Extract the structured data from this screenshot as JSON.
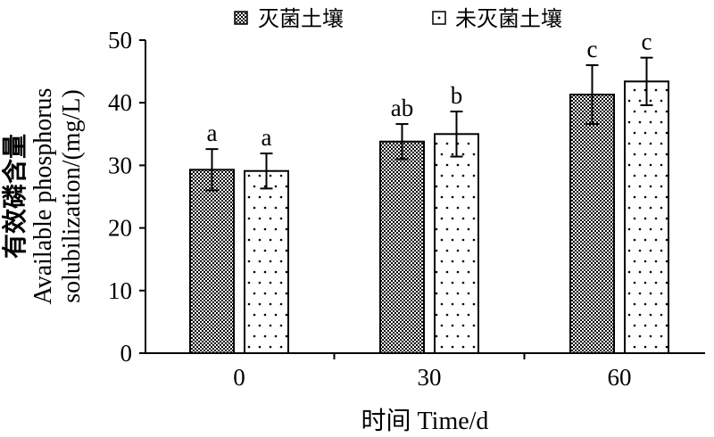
{
  "chart_data": {
    "type": "bar",
    "categories": [
      "0",
      "30",
      "60"
    ],
    "series": [
      {
        "name": "灭菌土壤",
        "values": [
          29.3,
          33.8,
          41.3
        ],
        "errors": [
          3.3,
          2.8,
          4.7
        ],
        "letters": [
          "a",
          "ab",
          "c"
        ],
        "pattern": "checkered"
      },
      {
        "name": "未灭菌土壤",
        "values": [
          29.1,
          35.0,
          43.4
        ],
        "errors": [
          2.8,
          3.6,
          3.8
        ],
        "letters": [
          "a",
          "b",
          "c"
        ],
        "pattern": "dotted"
      }
    ],
    "xlabel": "时间 Time/d",
    "ylabel": [
      "有效磷含量",
      "Available phosphorus",
      "solubilization/(mg/L)"
    ],
    "ylim": [
      0,
      50
    ],
    "yticks": [
      0,
      10,
      20,
      30,
      40,
      50
    ],
    "legend": "top",
    "grid": false,
    "colors": {
      "ink": "#000000",
      "background": "#ffffff"
    }
  }
}
